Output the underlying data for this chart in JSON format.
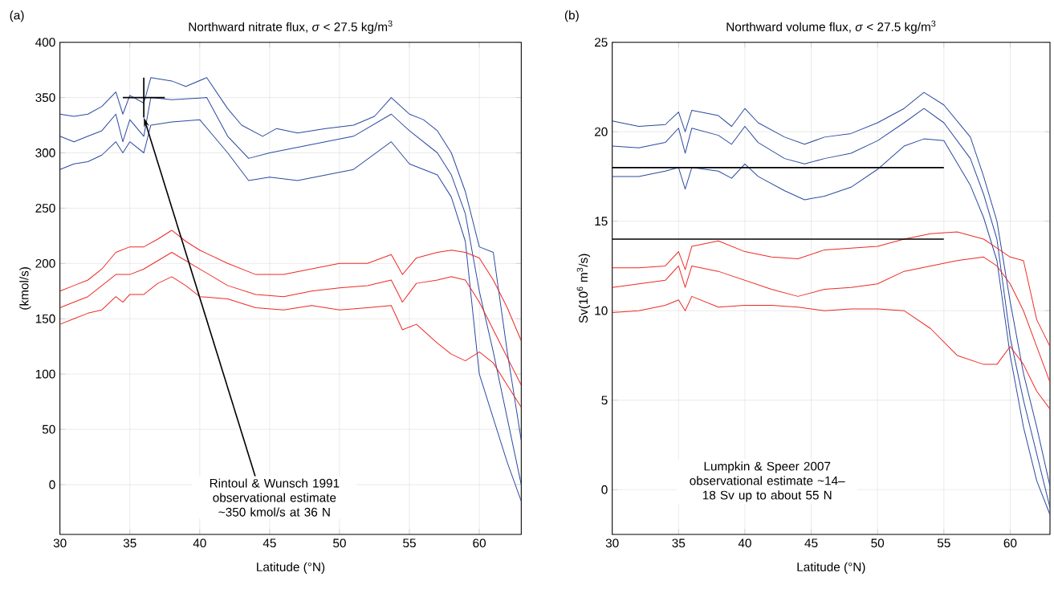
{
  "chart_data": [
    {
      "type": "line",
      "title": "Northward nitrate flux, *σ* < 27.5 kg/m$^{3}$",
      "xlabel": "Latitude (°N)",
      "ylabel": "(kmol/s)",
      "xlim": [
        30,
        63
      ],
      "ylim": [
        -45,
        400
      ],
      "xticks": [
        30,
        35,
        40,
        45,
        50,
        55,
        60
      ],
      "yticks": [
        0,
        50,
        100,
        150,
        200,
        250,
        300,
        350,
        400
      ],
      "grid": true,
      "series": [
        {
          "color": "#2b4aa0",
          "x": [
            30,
            31,
            32,
            33,
            34,
            34.5,
            35,
            36,
            36.5,
            38,
            39,
            40.5,
            42,
            43,
            44.5,
            45.5,
            47,
            49,
            51,
            52.5,
            53.7,
            55,
            56,
            57,
            58,
            59,
            60,
            61,
            62,
            63
          ],
          "values": [
            335,
            333,
            335,
            342,
            355,
            335,
            352,
            345,
            368,
            365,
            360,
            368,
            340,
            325,
            315,
            322,
            318,
            322,
            325,
            333,
            350,
            335,
            330,
            320,
            300,
            265,
            215,
            210,
            120,
            40
          ]
        },
        {
          "color": "#2b4aa0",
          "x": [
            30,
            31,
            32,
            33,
            34,
            34.5,
            35,
            36,
            36.5,
            38,
            40.5,
            42,
            43.5,
            45,
            47,
            49,
            51,
            53.7,
            55,
            57,
            58,
            59,
            60,
            61,
            62,
            63
          ],
          "values": [
            315,
            310,
            315,
            320,
            335,
            310,
            330,
            315,
            350,
            348,
            350,
            315,
            295,
            300,
            305,
            310,
            315,
            335,
            320,
            300,
            280,
            245,
            175,
            120,
            60,
            0
          ]
        },
        {
          "color": "#2b4aa0",
          "x": [
            30,
            31,
            32,
            33,
            34,
            34.5,
            35,
            36,
            36.5,
            38,
            40,
            42,
            43.5,
            45,
            47,
            49,
            51,
            53.7,
            55,
            57,
            58,
            59,
            60,
            61,
            62,
            63
          ],
          "values": [
            285,
            290,
            292,
            298,
            310,
            300,
            310,
            300,
            325,
            328,
            330,
            300,
            275,
            278,
            275,
            280,
            285,
            310,
            290,
            280,
            260,
            220,
            100,
            60,
            20,
            -15
          ]
        },
        {
          "color": "#ee2a24",
          "x": [
            30,
            31,
            32,
            33,
            34,
            35,
            36,
            37,
            38,
            39,
            40,
            42,
            44,
            46,
            48,
            50,
            52,
            53.7,
            54.5,
            55.5,
            57,
            58,
            59,
            60,
            61,
            62,
            63
          ],
          "values": [
            175,
            180,
            185,
            195,
            210,
            215,
            215,
            222,
            230,
            220,
            212,
            200,
            190,
            190,
            195,
            200,
            200,
            208,
            190,
            205,
            210,
            212,
            210,
            205,
            185,
            160,
            130
          ]
        },
        {
          "color": "#ee2a24",
          "x": [
            30,
            31,
            32,
            33,
            34,
            35,
            36,
            38,
            40,
            42,
            44,
            46,
            48,
            50,
            52,
            53.7,
            54.5,
            55.5,
            57,
            58,
            59,
            60,
            61,
            62,
            63
          ],
          "values": [
            160,
            165,
            170,
            180,
            190,
            190,
            195,
            210,
            195,
            180,
            172,
            170,
            175,
            178,
            180,
            185,
            165,
            182,
            185,
            188,
            185,
            165,
            140,
            115,
            90
          ]
        },
        {
          "color": "#ee2a24",
          "x": [
            30,
            31,
            32,
            33,
            34,
            34.5,
            35,
            36,
            37,
            38,
            39,
            40,
            42,
            44,
            46,
            48,
            50,
            52,
            53.7,
            54.5,
            55.5,
            57,
            58,
            59,
            60,
            61,
            62,
            63
          ],
          "values": [
            145,
            150,
            155,
            158,
            170,
            165,
            172,
            172,
            182,
            188,
            180,
            170,
            168,
            160,
            158,
            162,
            158,
            160,
            162,
            140,
            145,
            128,
            118,
            112,
            120,
            110,
            90,
            70
          ]
        },
        {
          "color": "#000000",
          "x": [
            34.5,
            37.5
          ],
          "values": [
            350,
            350
          ]
        },
        {
          "color": "#000000",
          "x": [
            36,
            36
          ],
          "values": [
            332,
            368
          ]
        }
      ],
      "annotations": [
        "(a)",
        "Rintoul & Wunsch 1991 observational estimate ~350 kmol/s at 36 N"
      ]
    },
    {
      "type": "line",
      "title": "Northward volume flux, *σ* < 27.5 kg/m$^{3}$",
      "xlabel": "Latitude (°N)",
      "ylabel": "Sv(10$^{6}$ m$^{3}$/s)",
      "xlim": [
        30,
        63
      ],
      "ylim": [
        -2.5,
        25
      ],
      "xticks": [
        30,
        35,
        40,
        45,
        50,
        55,
        60
      ],
      "yticks": [
        0,
        5,
        10,
        15,
        20,
        25
      ],
      "grid": true,
      "series": [
        {
          "color": "#2b4aa0",
          "x": [
            30,
            32,
            34,
            35,
            35.5,
            36,
            38,
            39,
            40,
            41,
            43,
            44.5,
            46,
            48,
            50,
            52,
            53.5,
            55,
            57,
            58,
            59,
            60,
            61,
            62,
            63
          ],
          "values": [
            20.6,
            20.3,
            20.4,
            21.1,
            20.0,
            21.2,
            20.9,
            20.3,
            21.3,
            20.5,
            19.7,
            19.3,
            19.7,
            19.9,
            20.5,
            21.3,
            22.2,
            21.5,
            19.7,
            17.5,
            15.0,
            10.5,
            6.5,
            3.5,
            0.2
          ]
        },
        {
          "color": "#2b4aa0",
          "x": [
            30,
            32,
            34,
            35,
            35.5,
            36,
            38,
            39,
            40,
            41,
            43,
            44.5,
            46,
            48,
            50,
            52,
            53.5,
            55,
            57,
            58,
            59,
            60,
            61,
            62,
            63
          ],
          "values": [
            19.2,
            19.1,
            19.4,
            20.2,
            18.8,
            20.2,
            19.8,
            19.3,
            20.3,
            19.4,
            18.5,
            18.2,
            18.5,
            18.8,
            19.5,
            20.5,
            21.3,
            20.5,
            18.5,
            16.5,
            14.0,
            8.5,
            5,
            2,
            -1
          ]
        },
        {
          "color": "#2b4aa0",
          "x": [
            30,
            32,
            34,
            35,
            35.5,
            36,
            38,
            39,
            40,
            41,
            43,
            44.5,
            46,
            48,
            50,
            52,
            53.5,
            55,
            57,
            58,
            59,
            60,
            61,
            62,
            63
          ],
          "values": [
            17.5,
            17.5,
            17.8,
            18.0,
            16.8,
            18.0,
            17.8,
            17.4,
            18.2,
            17.5,
            16.7,
            16.2,
            16.4,
            16.9,
            17.9,
            19.2,
            19.6,
            19.5,
            17.0,
            15.2,
            12.8,
            7.5,
            3.5,
            0.5,
            -1.4
          ]
        },
        {
          "color": "#ee2a24",
          "x": [
            30,
            32,
            34,
            35,
            35.5,
            36,
            38,
            40,
            42,
            44,
            46,
            48,
            50,
            52,
            54,
            56,
            58,
            59,
            60,
            61,
            62,
            63
          ],
          "values": [
            12.4,
            12.4,
            12.5,
            13.3,
            12.3,
            13.6,
            13.9,
            13.3,
            13.0,
            12.9,
            13.4,
            13.5,
            13.6,
            14.0,
            14.3,
            14.4,
            14.0,
            13.5,
            13.0,
            12.8,
            9.5,
            8.0
          ]
        },
        {
          "color": "#ee2a24",
          "x": [
            30,
            32,
            34,
            35,
            35.5,
            36,
            38,
            40,
            42,
            44,
            46,
            48,
            50,
            52,
            54,
            56,
            58,
            59,
            60,
            61,
            62,
            63
          ],
          "values": [
            11.3,
            11.5,
            11.7,
            12.5,
            11.3,
            12.5,
            12.2,
            11.7,
            11.2,
            10.8,
            11.2,
            11.3,
            11.5,
            12.2,
            12.5,
            12.8,
            13.0,
            12.5,
            11.5,
            10,
            8,
            6
          ]
        },
        {
          "color": "#ee2a24",
          "x": [
            30,
            32,
            34,
            35,
            35.5,
            36,
            38,
            40,
            42,
            44,
            46,
            48,
            50,
            52,
            54,
            56,
            58,
            59,
            60,
            61,
            62,
            63
          ],
          "values": [
            9.9,
            10.0,
            10.3,
            10.6,
            10.0,
            10.8,
            10.2,
            10.3,
            10.3,
            10.2,
            10.0,
            10.1,
            10.1,
            10.0,
            9.0,
            7.5,
            7.0,
            7.0,
            8.0,
            7,
            5.5,
            4.5
          ]
        },
        {
          "color": "#000000",
          "x": [
            30,
            55
          ],
          "values": [
            18,
            18
          ]
        },
        {
          "color": "#000000",
          "x": [
            30,
            55
          ],
          "values": [
            14,
            14
          ]
        }
      ],
      "annotations": [
        "(b)",
        "Lumpkin & Speer 2007 observational estimate ~14–18 Sv up to about 55 N"
      ]
    }
  ]
}
